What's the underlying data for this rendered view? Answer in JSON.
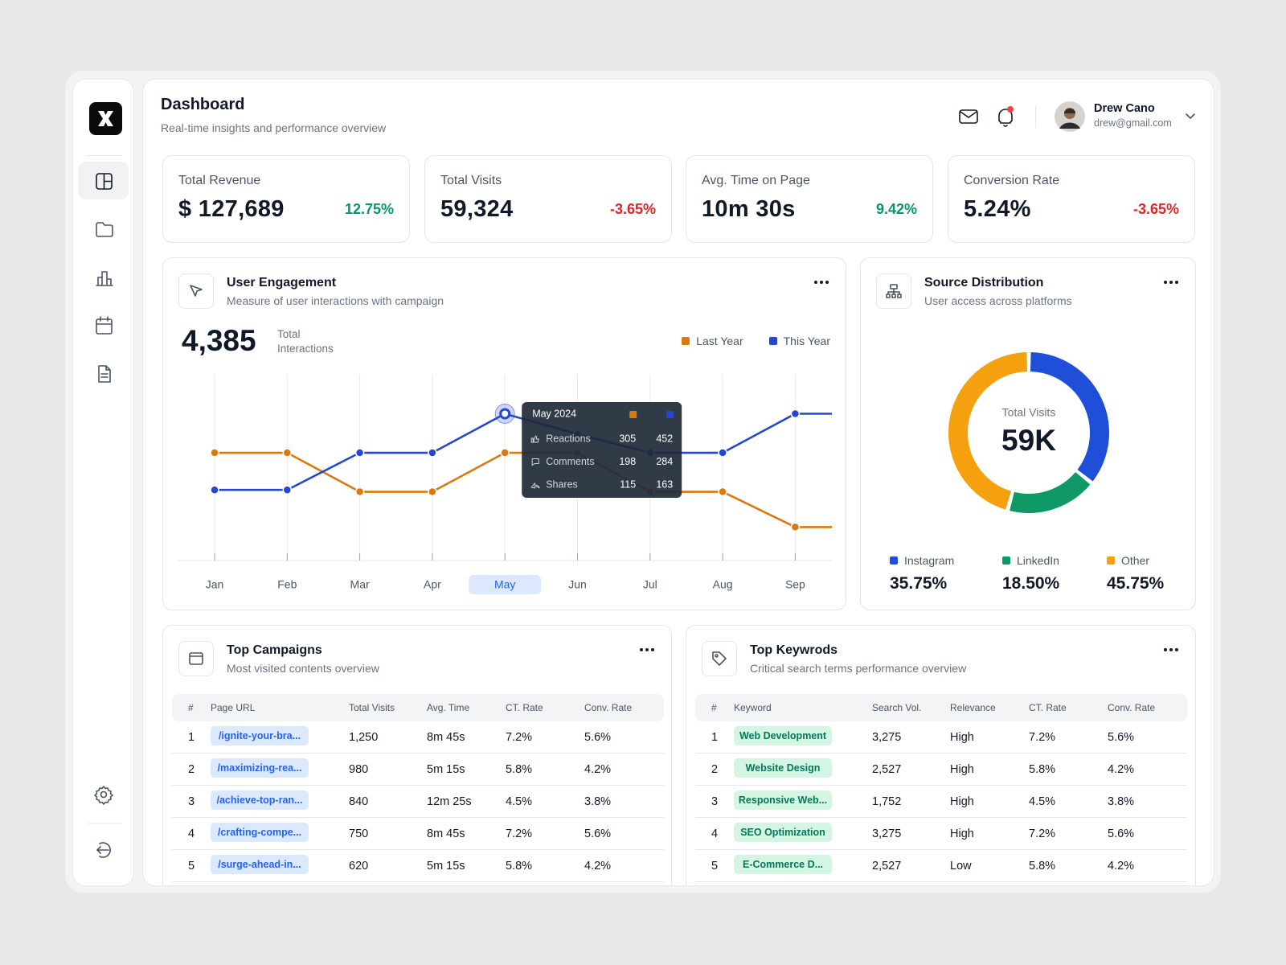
{
  "header": {
    "title": "Dashboard",
    "subtitle": "Real-time insights and performance overview",
    "user_name": "Drew Cano",
    "user_email": "drew@gmail.com"
  },
  "kpis": [
    {
      "label": "Total Revenue",
      "value": "$ 127,689",
      "change": "12.75%"
    },
    {
      "label": "Total Visits",
      "value": "59,324",
      "change": "-3.65%"
    },
    {
      "label": "Avg. Time on Page",
      "value": "10m 30s",
      "change": "9.42%"
    },
    {
      "label": "Conversion Rate",
      "value": "5.24%",
      "change": "-3.65%"
    }
  ],
  "chart_data": [
    {
      "type": "line",
      "title": "User Engagement",
      "subtitle": "Measure of user interactions with campaign",
      "total": "4,385",
      "total_label": "Total Interactions",
      "categories": [
        "Jan",
        "Feb",
        "Mar",
        "Apr",
        "May",
        "Jun",
        "Jul",
        "Aug",
        "Sep"
      ],
      "series": [
        {
          "name": "Last Year",
          "color": "#d97a0f",
          "values": [
            58,
            58,
            37,
            37,
            58,
            58,
            37,
            37,
            18
          ]
        },
        {
          "name": "This Year",
          "color": "#2547cf",
          "values": [
            38,
            38,
            58,
            58,
            79,
            68,
            58,
            58,
            79
          ]
        }
      ],
      "ylim": [
        0,
        100
      ],
      "tooltip": {
        "title": "May 2024",
        "category_index": 4,
        "rows": [
          {
            "label": "Reactions",
            "values": [
              305,
              452
            ]
          },
          {
            "label": "Comments",
            "values": [
              198,
              284
            ]
          },
          {
            "label": "Shares",
            "values": [
              115,
              163
            ]
          }
        ]
      }
    },
    {
      "type": "donut",
      "title": "Source Distribution",
      "subtitle": "User access across platforms",
      "center_label": "Total Visits",
      "center_value": "59K",
      "categories": [
        "Instagram",
        "LinkedIn",
        "Other"
      ],
      "values": [
        35.75,
        18.5,
        45.75
      ],
      "value_labels": [
        "35.75%",
        "18.50%",
        "45.75%"
      ],
      "colors": [
        "#1f4fd8",
        "#0e9966",
        "#f5a00f"
      ]
    }
  ],
  "tables": [
    {
      "title": "Top Campaigns",
      "subtitle": "Most visited contents overview",
      "columns": [
        "#",
        "Page URL",
        "Total Visits",
        "Avg. Time",
        "CT. Rate",
        "Conv. Rate"
      ],
      "rows": [
        [
          "1",
          "/ignite-your-bra...",
          "1,250",
          "8m 45s",
          "7.2%",
          "5.6%"
        ],
        [
          "2",
          "/maximizing-rea...",
          "980",
          "5m 15s",
          "5.8%",
          "4.2%"
        ],
        [
          "3",
          "/achieve-top-ran...",
          "840",
          "12m 25s",
          "4.5%",
          "3.8%"
        ],
        [
          "4",
          "/crafting-compe...",
          "750",
          "8m 45s",
          "7.2%",
          "5.6%"
        ],
        [
          "5",
          "/surge-ahead-in...",
          "620",
          "5m 15s",
          "5.8%",
          "4.2%"
        ]
      ]
    },
    {
      "title": "Top Keywrods",
      "subtitle": "Critical search terms performance overview",
      "columns": [
        "#",
        "Keyword",
        "Search Vol.",
        "Relevance",
        "CT. Rate",
        "Conv. Rate"
      ],
      "rows": [
        [
          "1",
          "Web Development",
          "3,275",
          "High",
          "7.2%",
          "5.6%"
        ],
        [
          "2",
          "Website Design",
          "2,527",
          "High",
          "5.8%",
          "4.2%"
        ],
        [
          "3",
          "Responsive Web...",
          "1,752",
          "High",
          "4.5%",
          "3.8%"
        ],
        [
          "4",
          "SEO Optimization",
          "3,275",
          "High",
          "7.2%",
          "5.6%"
        ],
        [
          "5",
          "E-Commerce D...",
          "2,527",
          "Low",
          "5.8%",
          "4.2%"
        ]
      ]
    }
  ]
}
